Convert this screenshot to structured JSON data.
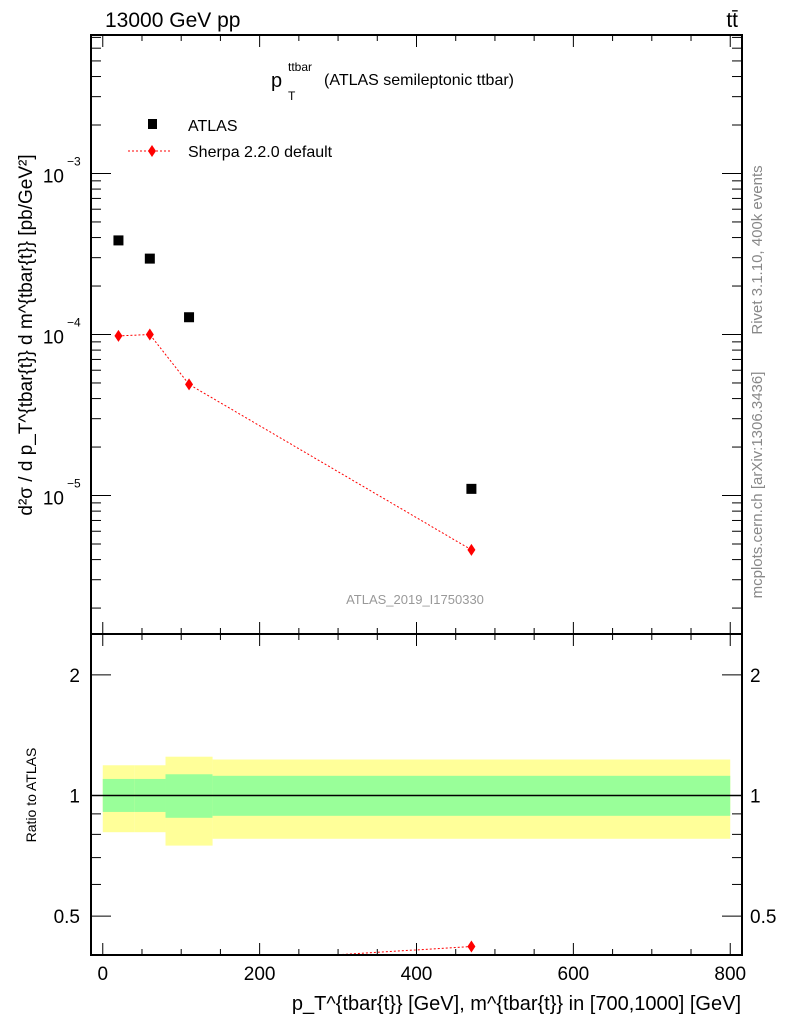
{
  "chart_data": {
    "type": "scatter",
    "header_left": "13000 GeV pp",
    "header_right": "tt̄",
    "title_main": "p",
    "title_sup": "ttbar",
    "title_sub": "T",
    "title_rest": "(ATLAS semileptonic ttbar)",
    "side_label_top": "Rivet 3.1.10,  400k events",
    "side_label_bottom": "mcplots.cern.ch [arXiv:1306.3436]",
    "analysis_id": "ATLAS_2019_I1750330",
    "ylabel": "d²σ / d p_T^{tbar{t}} d m^{tbar{t}} [pb/GeV²]",
    "ratio_ylabel": "Ratio to ATLAS",
    "xlabel": "p_T^{tbar{t}} [GeV], m^{tbar{t}} in [700,1000] [GeV]",
    "xlim": [
      -15,
      815
    ],
    "ylim_log10": [
      -5.86,
      -2.14
    ],
    "ratio_ylim": [
      0.4,
      2.53
    ],
    "x_ticks": [
      "0",
      "200",
      "400",
      "600",
      "800"
    ],
    "y_ticks": [
      {
        "exp": -3,
        "label": "10",
        "sup": "−3"
      },
      {
        "exp": -4,
        "label": "10",
        "sup": "−4"
      },
      {
        "exp": -5,
        "label": "10",
        "sup": "−5"
      }
    ],
    "ratio_ticks": [
      {
        "v": 2,
        "label": "2"
      },
      {
        "v": 1,
        "label": "1"
      },
      {
        "v": 0.5,
        "label": "0.5"
      }
    ],
    "legend": [
      {
        "name": "ATLAS",
        "color": "#000000"
      },
      {
        "name": "Sherpa 2.2.0 default",
        "color": "#ff0000"
      }
    ],
    "legend_position": "top-left",
    "bins": [
      [
        0,
        40
      ],
      [
        40,
        80
      ],
      [
        80,
        140
      ],
      [
        140,
        800
      ]
    ],
    "series": [
      {
        "name": "ATLAS",
        "x": [
          20,
          60,
          110,
          470
        ],
        "y": [
          0.000384,
          0.000296,
          0.000128,
          1.1e-05
        ]
      },
      {
        "name": "Sherpa 2.2.0 default",
        "x": [
          20,
          60,
          110,
          470
        ],
        "y": [
          9.8e-05,
          0.0001,
          4.9e-05,
          4.6e-06
        ]
      }
    ],
    "ratio": {
      "x": [
        20,
        60,
        110,
        470
      ],
      "y": [
        0.255,
        0.34,
        0.38,
        0.42
      ]
    },
    "band_stat": {
      "lo": [
        0.91,
        0.91,
        0.88,
        0.89
      ],
      "hi": [
        1.1,
        1.1,
        1.13,
        1.12
      ],
      "color": "#99ff99"
    },
    "band_total": {
      "lo": [
        0.81,
        0.81,
        0.75,
        0.78
      ],
      "hi": [
        1.19,
        1.19,
        1.25,
        1.23
      ],
      "color": "#ffff99"
    }
  }
}
